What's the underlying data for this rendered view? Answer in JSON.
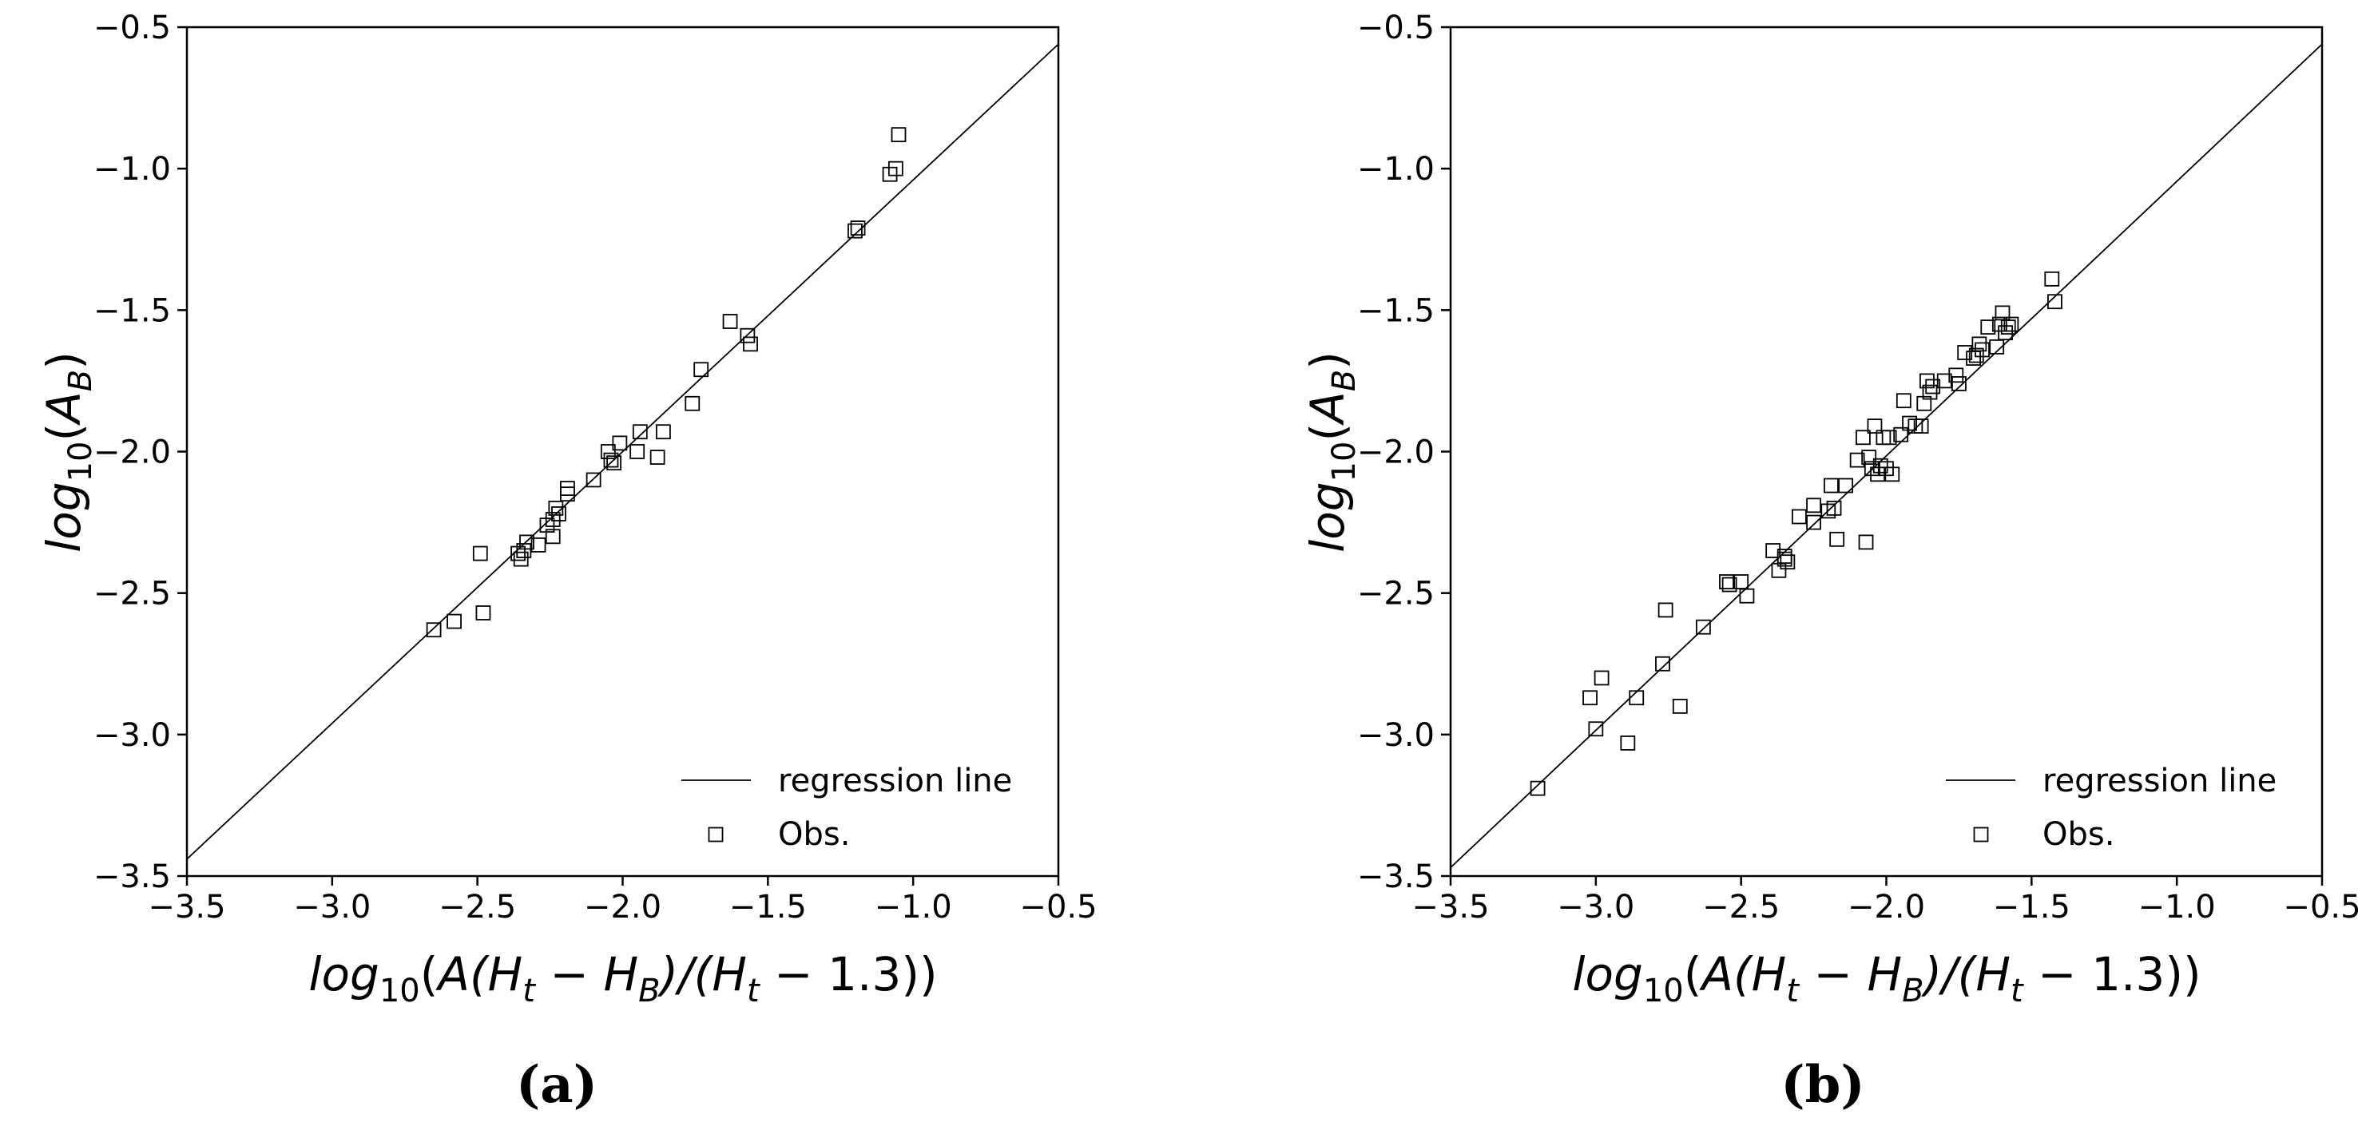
{
  "chart_data": [
    {
      "type": "scatter",
      "panel_label": "(a)",
      "xlabel": {
        "pre": "log",
        "sub1": "10",
        "mid1": "(A(H",
        "sub2": "t",
        "mid2": " − H",
        "sub3": "B",
        "mid3": ")/(H",
        "sub4": "t",
        "post": " − 1.3))"
      },
      "ylabel": {
        "pre": "log",
        "sub1": "10",
        "mid1": "(A",
        "sub2": "B",
        "post": ")"
      },
      "xlim": [
        -3.5,
        -0.5
      ],
      "ylim": [
        -3.5,
        -0.5
      ],
      "xticks": [
        "−3.5",
        "−3.0",
        "−2.5",
        "−2.0",
        "−1.5",
        "−1.0",
        "−0.5"
      ],
      "yticks": [
        "−3.5",
        "−3.0",
        "−2.5",
        "−2.0",
        "−1.5",
        "−1.0",
        "−0.5"
      ],
      "xtick_values": [
        -3.5,
        -3.0,
        -2.5,
        -2.0,
        -1.5,
        -1.0,
        -0.5
      ],
      "ytick_values": [
        -3.5,
        -3.0,
        -2.5,
        -2.0,
        -1.5,
        -1.0,
        -0.5
      ],
      "grid": false,
      "legend": {
        "position": "lower right",
        "line_label": "regression line",
        "marker_label": "Obs."
      },
      "series": [
        {
          "name": "regression line",
          "kind": "line",
          "x": [
            -3.5,
            -0.5
          ],
          "y": [
            -3.44,
            -0.56
          ]
        },
        {
          "name": "Obs.",
          "kind": "scatter",
          "marker": "open-square",
          "x": [
            -2.65,
            -2.58,
            -2.48,
            -2.49,
            -2.36,
            -2.35,
            -2.34,
            -2.33,
            -2.29,
            -2.26,
            -2.24,
            -2.24,
            -2.23,
            -2.22,
            -2.19,
            -2.19,
            -2.1,
            -2.05,
            -2.04,
            -2.03,
            -2.01,
            -1.95,
            -1.94,
            -1.88,
            -1.86,
            -1.76,
            -1.73,
            -1.63,
            -1.57,
            -1.56,
            -1.2,
            -1.19,
            -1.08,
            -1.06,
            -1.05
          ],
          "y": [
            -2.63,
            -2.6,
            -2.57,
            -2.36,
            -2.36,
            -2.38,
            -2.35,
            -2.32,
            -2.33,
            -2.26,
            -2.3,
            -2.24,
            -2.2,
            -2.22,
            -2.13,
            -2.15,
            -2.1,
            -2.0,
            -2.03,
            -2.04,
            -1.97,
            -2.0,
            -1.93,
            -2.02,
            -1.93,
            -1.83,
            -1.71,
            -1.54,
            -1.59,
            -1.62,
            -1.22,
            -1.21,
            -1.02,
            -1.0,
            -0.88
          ]
        }
      ]
    },
    {
      "type": "scatter",
      "panel_label": "(b)",
      "xlabel": {
        "pre": "log",
        "sub1": "10",
        "mid1": "(A(H",
        "sub2": "t",
        "mid2": " − H",
        "sub3": "B",
        "mid3": ")/(H",
        "sub4": "t",
        "post": " − 1.3))"
      },
      "ylabel": {
        "pre": "log",
        "sub1": "10",
        "mid1": "(A",
        "sub2": "B",
        "post": ")"
      },
      "xlim": [
        -3.5,
        -0.5
      ],
      "ylim": [
        -3.5,
        -0.5
      ],
      "xticks": [
        "−3.5",
        "−3.0",
        "−2.5",
        "−2.0",
        "−1.5",
        "−1.0",
        "−0.5"
      ],
      "yticks": [
        "−3.5",
        "−3.0",
        "−2.5",
        "−2.0",
        "−1.5",
        "−1.0",
        "−0.5"
      ],
      "xtick_values": [
        -3.5,
        -3.0,
        -2.5,
        -2.0,
        -1.5,
        -1.0,
        -0.5
      ],
      "ytick_values": [
        -3.5,
        -3.0,
        -2.5,
        -2.0,
        -1.5,
        -1.0,
        -0.5
      ],
      "grid": false,
      "legend": {
        "position": "lower right",
        "line_label": "regression line",
        "marker_label": "Obs."
      },
      "series": [
        {
          "name": "regression line",
          "kind": "line",
          "x": [
            -3.5,
            -0.5
          ],
          "y": [
            -3.47,
            -0.56
          ]
        },
        {
          "name": "Obs.",
          "kind": "scatter",
          "marker": "open-square",
          "x": [
            -3.2,
            -3.02,
            -3.0,
            -2.98,
            -2.89,
            -2.86,
            -2.77,
            -2.76,
            -2.71,
            -2.63,
            -2.55,
            -2.54,
            -2.5,
            -2.48,
            -2.39,
            -2.37,
            -2.35,
            -2.35,
            -2.34,
            -2.3,
            -2.25,
            -2.25,
            -2.2,
            -2.19,
            -2.18,
            -2.17,
            -2.14,
            -2.1,
            -2.08,
            -2.07,
            -2.06,
            -2.05,
            -2.04,
            -2.03,
            -2.02,
            -2.01,
            -2.0,
            -1.99,
            -1.98,
            -1.95,
            -1.94,
            -1.92,
            -1.9,
            -1.88,
            -1.87,
            -1.86,
            -1.85,
            -1.84,
            -1.8,
            -1.76,
            -1.75,
            -1.73,
            -1.7,
            -1.69,
            -1.68,
            -1.67,
            -1.65,
            -1.62,
            -1.61,
            -1.6,
            -1.59,
            -1.58,
            -1.57,
            -1.43,
            -1.42
          ],
          "y": [
            -3.19,
            -2.87,
            -2.98,
            -2.8,
            -3.03,
            -2.87,
            -2.75,
            -2.56,
            -2.9,
            -2.62,
            -2.46,
            -2.47,
            -2.46,
            -2.51,
            -2.35,
            -2.42,
            -2.38,
            -2.37,
            -2.39,
            -2.23,
            -2.19,
            -2.25,
            -2.21,
            -2.12,
            -2.2,
            -2.31,
            -2.12,
            -2.03,
            -1.95,
            -2.32,
            -2.02,
            -2.06,
            -1.91,
            -2.08,
            -2.05,
            -1.95,
            -2.06,
            -1.95,
            -2.08,
            -1.94,
            -1.82,
            -1.9,
            -1.91,
            -1.91,
            -1.83,
            -1.75,
            -1.79,
            -1.77,
            -1.75,
            -1.73,
            -1.76,
            -1.65,
            -1.67,
            -1.66,
            -1.62,
            -1.64,
            -1.56,
            -1.63,
            -1.55,
            -1.51,
            -1.58,
            -1.56,
            -1.55,
            -1.39,
            -1.47
          ]
        }
      ]
    }
  ]
}
